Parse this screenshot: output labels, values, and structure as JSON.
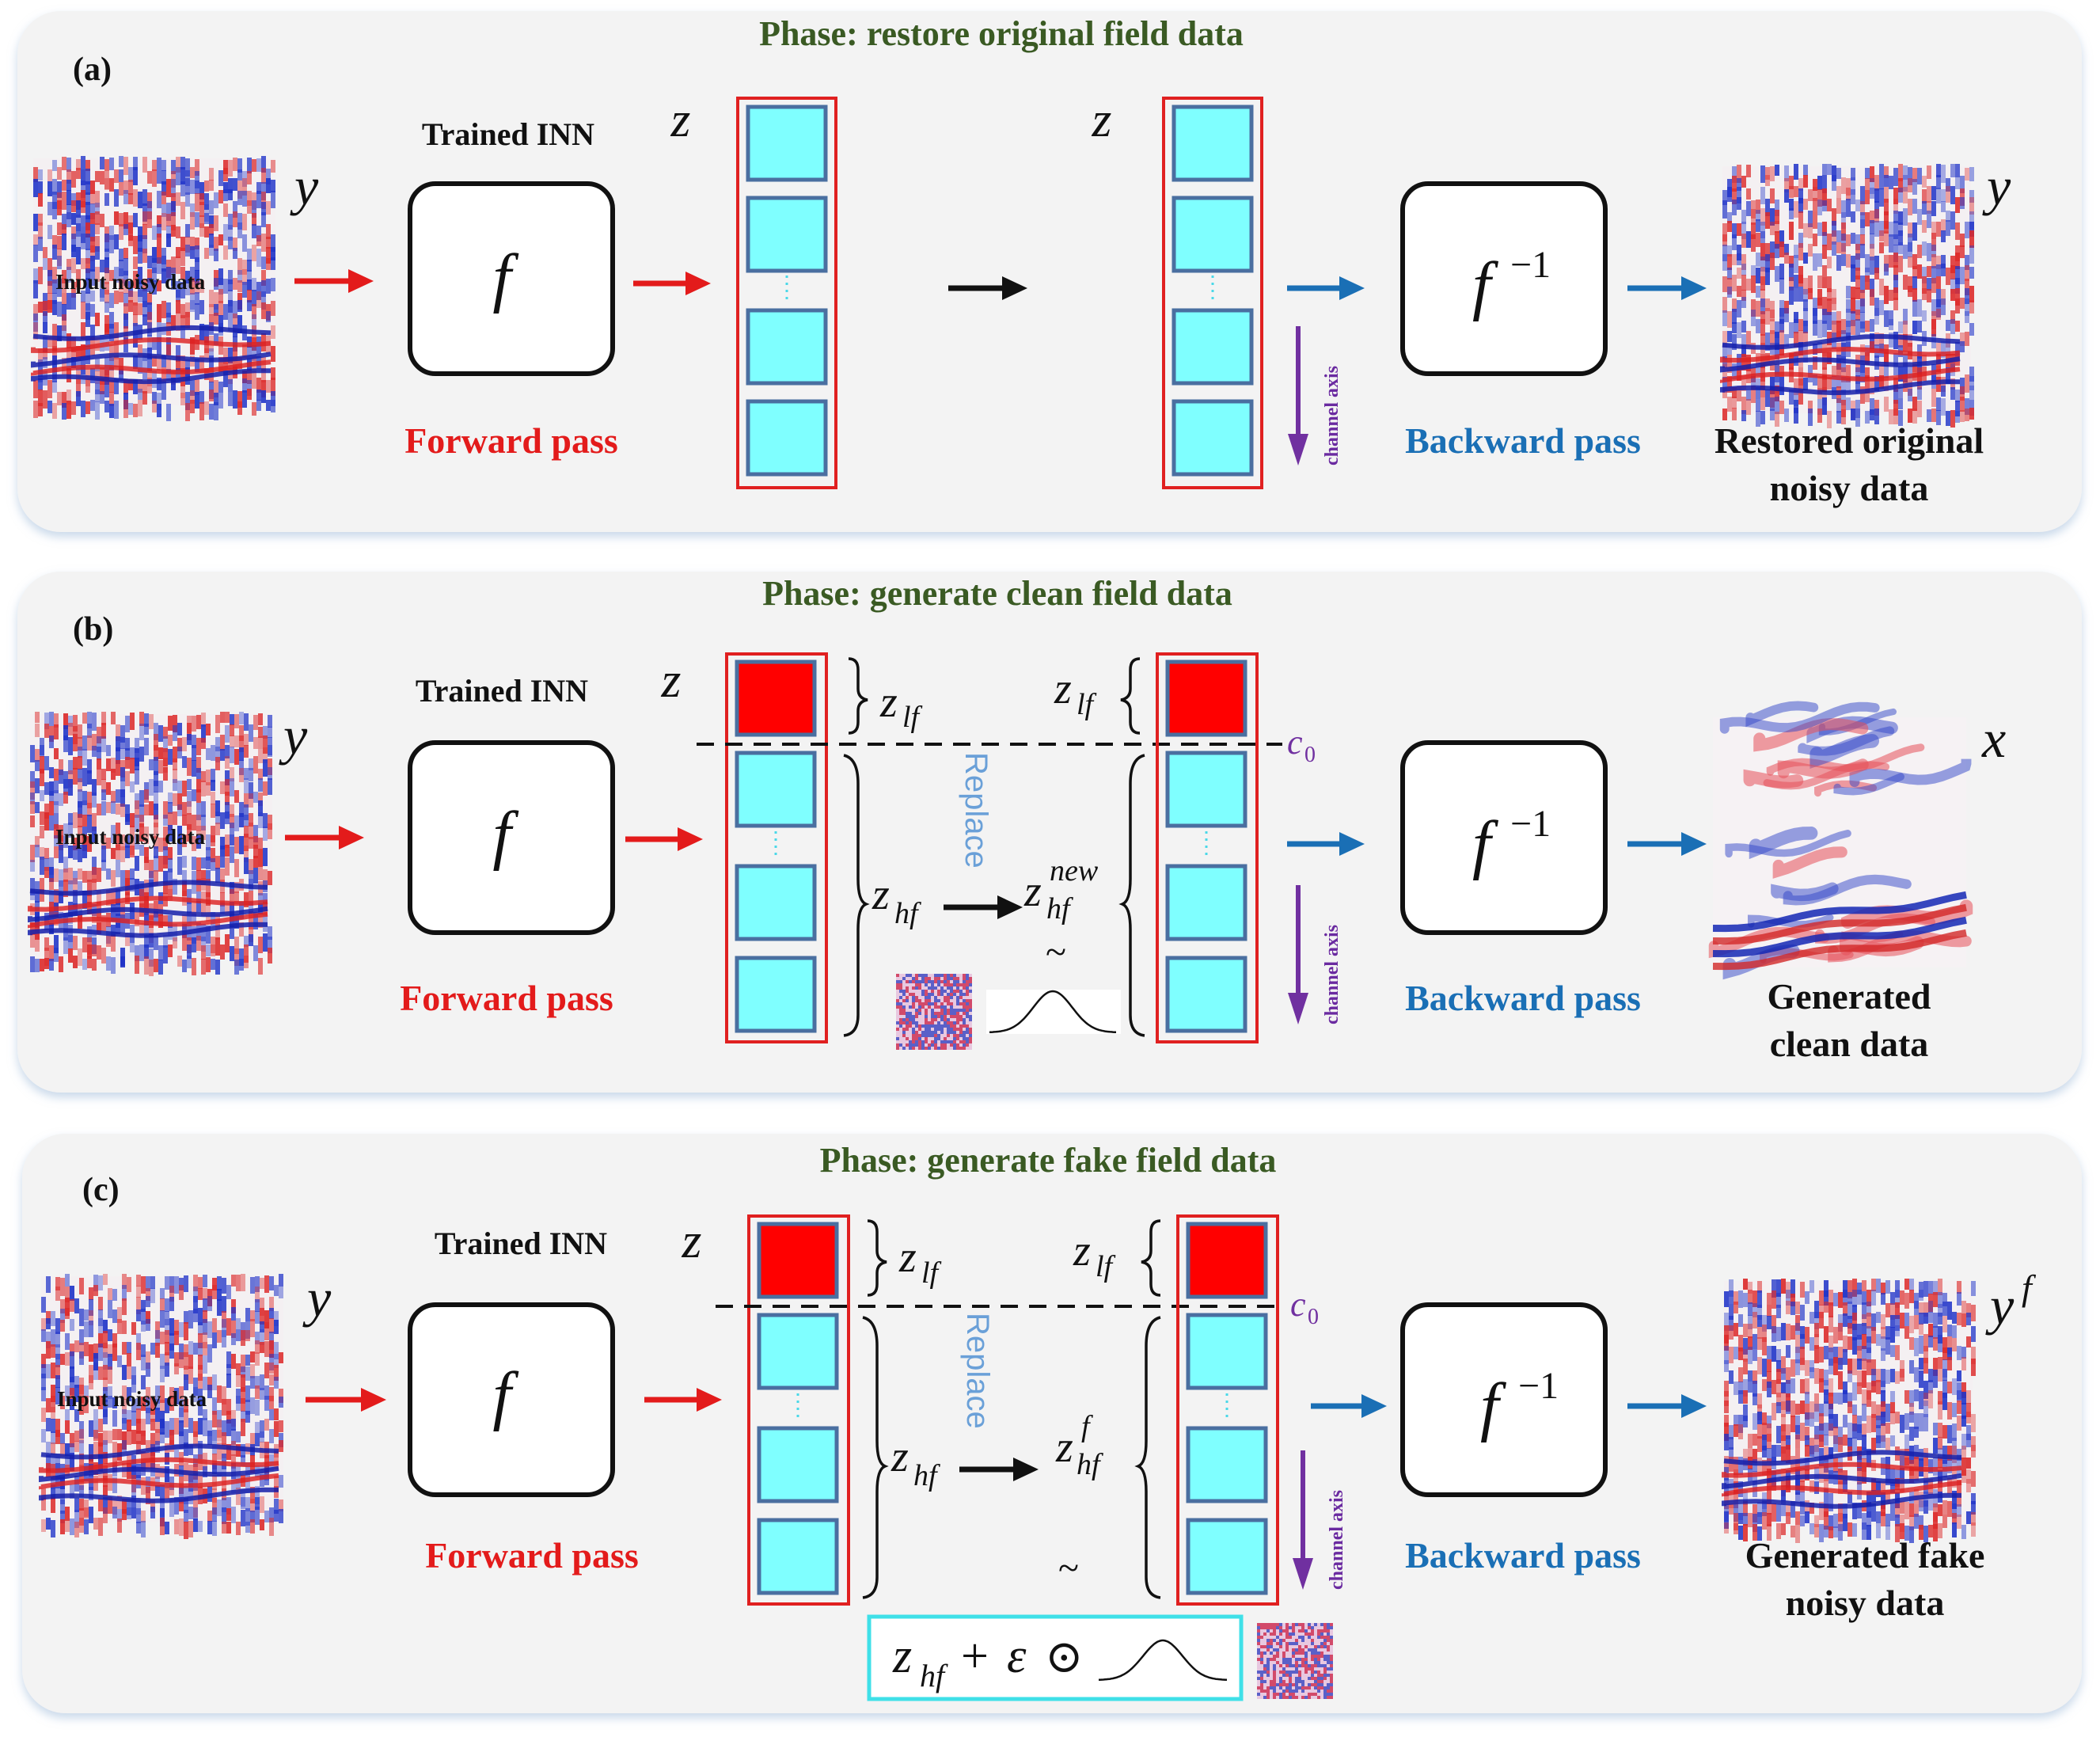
{
  "panels": [
    {
      "label": "(a)",
      "title": "Phase: restore original field data",
      "input_symbol": "y",
      "input_caption": "Input noisy data",
      "network_label": "Trained INN",
      "forward_func": "f",
      "forward_label": "Forward pass",
      "latent_symbol_left": "z",
      "latent_symbol_right": "z",
      "channel_axis_label": "channel axis",
      "inverse_func": "f",
      "inverse_exponent": "−1",
      "backward_label": "Backward pass",
      "output_symbol": "y",
      "output_caption_line1": "Restored original",
      "output_caption_line2": "noisy data"
    },
    {
      "label": "(b)",
      "title": "Phase: generate clean field data",
      "input_symbol": "y",
      "input_caption": "Input noisy data",
      "network_label": "Trained INN",
      "forward_func": "f",
      "forward_label": "Forward pass",
      "latent_symbol": "z",
      "z_lf": {
        "base": "z",
        "sub": "lf"
      },
      "z_hf": {
        "base": "z",
        "sub": "hf"
      },
      "z_new": {
        "base": "z",
        "sub": "hf",
        "sup": "new"
      },
      "tilde": "~",
      "replace_label": "Replace",
      "c0": {
        "base": "c",
        "sub": "0"
      },
      "channel_axis_label": "channel axis",
      "inverse_func": "f",
      "inverse_exponent": "−1",
      "backward_label": "Backward pass",
      "output_symbol": "x",
      "output_caption_line1": "Generated",
      "output_caption_line2": "clean data"
    },
    {
      "label": "(c)",
      "title": "Phase: generate fake field data",
      "input_symbol": "y",
      "input_caption": "Input noisy data",
      "network_label": "Trained INN",
      "forward_func": "f",
      "forward_label": "Forward pass",
      "latent_symbol": "z",
      "z_lf": {
        "base": "z",
        "sub": "lf"
      },
      "z_hf": {
        "base": "z",
        "sub": "hf"
      },
      "z_fake": {
        "base": "z",
        "sub": "hf",
        "sup": "f"
      },
      "tilde": "~",
      "replace_label": "Replace",
      "c0": {
        "base": "c",
        "sub": "0"
      },
      "channel_axis_label": "channel axis",
      "formula": {
        "base": "z",
        "sub": "hf",
        "plus": "+",
        "eps": "ε",
        "odot": "⊙"
      },
      "inverse_func": "f",
      "inverse_exponent": "−1",
      "backward_label": "Backward pass",
      "output_symbol": "y",
      "output_symbol_sup": "f",
      "output_caption_line1": "Generated fake",
      "output_caption_line2": "noisy data"
    }
  ],
  "colors": {
    "panel_bg": "#f3f3f3",
    "forward": "#e31b1b",
    "backward": "#1a6fb5",
    "block_fill": "#7fffff",
    "block_stroke": "#4a6fa0",
    "lowfreq_fill": "#ff0000",
    "latent_border": "#e02020",
    "axis_purple": "#7030a0",
    "title_green": "#3a5a23"
  }
}
